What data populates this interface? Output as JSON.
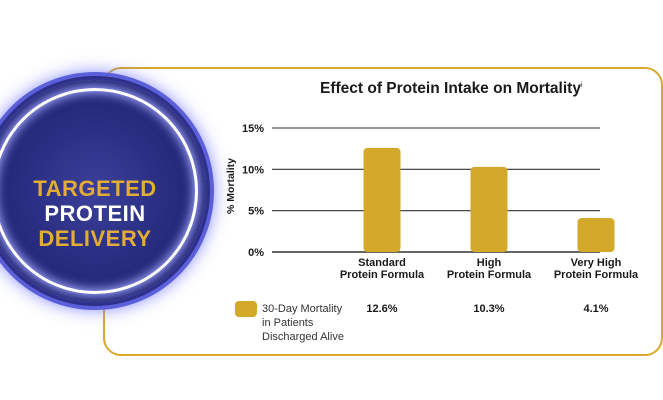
{
  "badge": {
    "lines": [
      "TARGETED",
      "PROTEIN",
      "DELIVERY"
    ]
  },
  "chart_data": {
    "type": "bar",
    "title": "Effect of Protein Intake on Mortality",
    "title_superscript": "i",
    "ylabel": "% Mortality",
    "ylim": [
      0,
      15
    ],
    "yticks": [
      0,
      5,
      10,
      15
    ],
    "ytick_labels": [
      "0%",
      "5%",
      "10%",
      "15%"
    ],
    "grid": true,
    "categories": [
      [
        "Standard",
        "Protein Formula"
      ],
      [
        "High",
        "Protein Formula"
      ],
      [
        "Very High",
        "Protein Formula"
      ]
    ],
    "series": [
      {
        "name": "30-Day Mortality in Patients Discharged Alive",
        "legend_lines": [
          "30-Day Mortality",
          "in Patients",
          "Discharged Alive"
        ],
        "values": [
          12.6,
          10.3,
          4.1
        ],
        "value_labels": [
          "12.6%",
          "10.3%",
          "4.1%"
        ]
      }
    ],
    "legend_position": "bottom-left",
    "colors": {
      "bar": "#d4a829",
      "axis": "#333333",
      "accent": "#d9a92c"
    }
  }
}
